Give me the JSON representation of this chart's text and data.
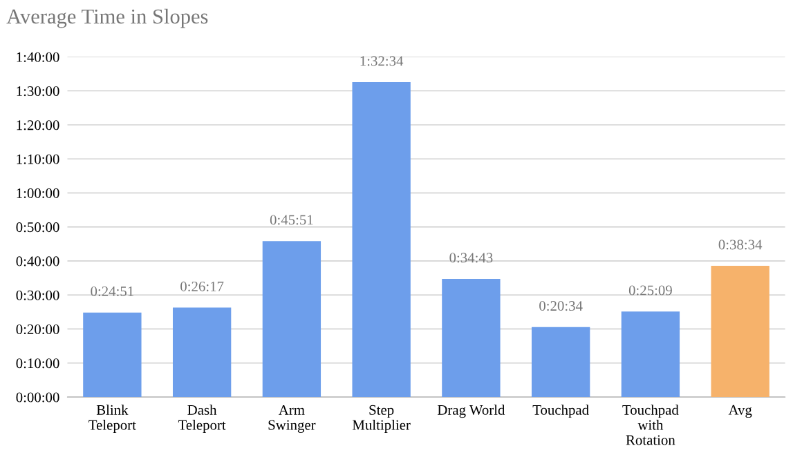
{
  "chart_data": {
    "type": "bar",
    "title": "Average Time in Slopes",
    "categories": [
      "Blink\nTeleport",
      "Dash\nTeleport",
      "Arm\nSwinger",
      "Step\nMultiplier",
      "Drag World",
      "Touchpad",
      "Touchpad\nwith\nRotation",
      "Avg"
    ],
    "values": [
      1491,
      1577,
      2751,
      5554,
      2083,
      1234,
      1509,
      2314
    ],
    "colors": [
      "#6d9eeb",
      "#6d9eeb",
      "#6d9eeb",
      "#6d9eeb",
      "#6d9eeb",
      "#6d9eeb",
      "#6d9eeb",
      "#f6b26b"
    ],
    "value_labels": [
      "0:24:51",
      "0:26:17",
      "0:45:51",
      "1:32:34",
      "0:34:43",
      "0:20:34",
      "0:25:09",
      "0:38:34"
    ],
    "ylim": [
      0,
      6000
    ],
    "yticks": [
      {
        "value": 0,
        "label": "0:00:00"
      },
      {
        "value": 600,
        "label": "0:10:00"
      },
      {
        "value": 1200,
        "label": "0:20:00"
      },
      {
        "value": 1800,
        "label": "0:30:00"
      },
      {
        "value": 2400,
        "label": "0:40:00"
      },
      {
        "value": 3000,
        "label": "0:50:00"
      },
      {
        "value": 3600,
        "label": "1:00:00"
      },
      {
        "value": 4200,
        "label": "1:10:00"
      },
      {
        "value": 4800,
        "label": "1:20:00"
      },
      {
        "value": 5400,
        "label": "1:30:00"
      },
      {
        "value": 6000,
        "label": "1:40:00"
      }
    ],
    "grid": "y"
  }
}
